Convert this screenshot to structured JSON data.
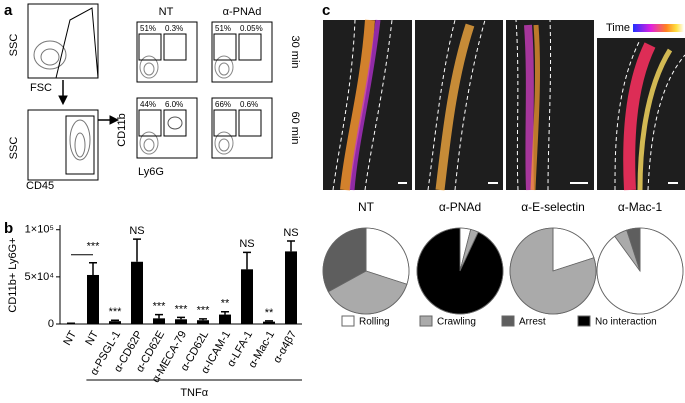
{
  "panel_labels": [
    "a",
    "b",
    "c"
  ],
  "flow": {
    "gating": [
      {
        "y_label": "SSC",
        "x_label": "FSC"
      },
      {
        "y_label": "SSC",
        "x_label": "CD45"
      }
    ],
    "columns": [
      "NT",
      "α-PNAd"
    ],
    "rows": [
      "30 min",
      "60 min"
    ],
    "y_label": "CD11b",
    "x_label": "Ly6G",
    "gates": [
      [
        "51%",
        "0.3%"
      ],
      [
        "51%",
        "0.05%"
      ],
      [
        "44%",
        "6.0%"
      ],
      [
        "66%",
        "0.6%"
      ]
    ]
  },
  "microscopy": {
    "colorbar_label": "Time"
  },
  "chart_data": [
    {
      "type": "bar",
      "y_label": "CD11b+ Ly6G+",
      "categories": [
        "NT",
        "NT",
        "α-PSGL-1",
        "α-CD62P",
        "α-CD62E",
        "α-MECA-79",
        "α-CD62L",
        "α-ICAM-1",
        "α-LFA-1",
        "α-Mac-1",
        "α-α4β7"
      ],
      "values": [
        500,
        52000,
        3000,
        66000,
        6000,
        5000,
        4000,
        10000,
        58000,
        2500,
        77000
      ],
      "errors": [
        300,
        13000,
        1000,
        24000,
        4000,
        2000,
        1500,
        3000,
        18000,
        800,
        11000
      ],
      "annotations": [
        null,
        "***",
        "***",
        "NS",
        "***",
        "***",
        "***",
        "**",
        "NS",
        "**",
        "NS"
      ],
      "group_label": "TNFα",
      "color": "#000000",
      "ylim": [
        0,
        105000
      ],
      "yticks": [
        0,
        {
          "value": 50000,
          "label": "5×10⁴"
        },
        {
          "value": 100000,
          "label": "1×10⁵"
        }
      ]
    },
    {
      "type": "pie",
      "categories": [
        "Rolling",
        "Crawling",
        "Arrest",
        "No interaction"
      ],
      "colors": [
        "#ffffff",
        "#aaaaaa",
        "#5e5e5e",
        "#000000"
      ],
      "pies": [
        {
          "title": "NT",
          "values": [
            30,
            37,
            33,
            0
          ]
        },
        {
          "title": "α-PNAd",
          "values": [
            4,
            3,
            0,
            93
          ]
        },
        {
          "title": "α-E-selectin",
          "values": [
            20,
            80,
            0,
            0
          ]
        },
        {
          "title": "α-Mac-1",
          "values": [
            90,
            5,
            5,
            0
          ]
        }
      ]
    }
  ]
}
